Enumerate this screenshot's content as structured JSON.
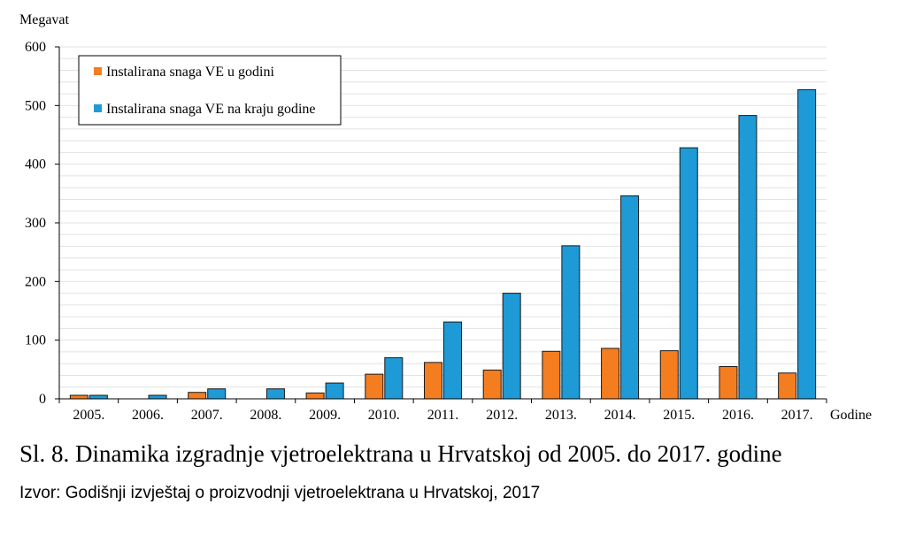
{
  "chart_data": {
    "type": "bar",
    "ylabel": "Megavat",
    "xlabel": "Godine",
    "ylim": [
      0,
      600
    ],
    "yticks": [
      0,
      100,
      200,
      300,
      400,
      500,
      600
    ],
    "grid": true,
    "legend_position": "top-left",
    "categories": [
      "2005.",
      "2006.",
      "2007.",
      "2008.",
      "2009.",
      "2010.",
      "2011.",
      "2012.",
      "2013.",
      "2014.",
      "2015.",
      "2016.",
      "2017."
    ],
    "series": [
      {
        "name": "Instalirana snaga VE u godini",
        "color": "#f47d20",
        "values": [
          6,
          0,
          11,
          0,
          10,
          42,
          62,
          49,
          81,
          86,
          82,
          55,
          44
        ]
      },
      {
        "name": "Instalirana snaga VE na kraju godine",
        "color": "#1e9ad6",
        "values": [
          6,
          6,
          17,
          17,
          27,
          70,
          131,
          180,
          261,
          346,
          428,
          483,
          527
        ]
      }
    ]
  },
  "caption": "Sl. 8. Dinamika izgradnje vjetroelektrana u Hrvatskoj od 2005. do 2017. godine",
  "source": "Izvor: Godišnji izvještaj o proizvodnji vjetroelektrana u Hrvatskoj, 2017"
}
